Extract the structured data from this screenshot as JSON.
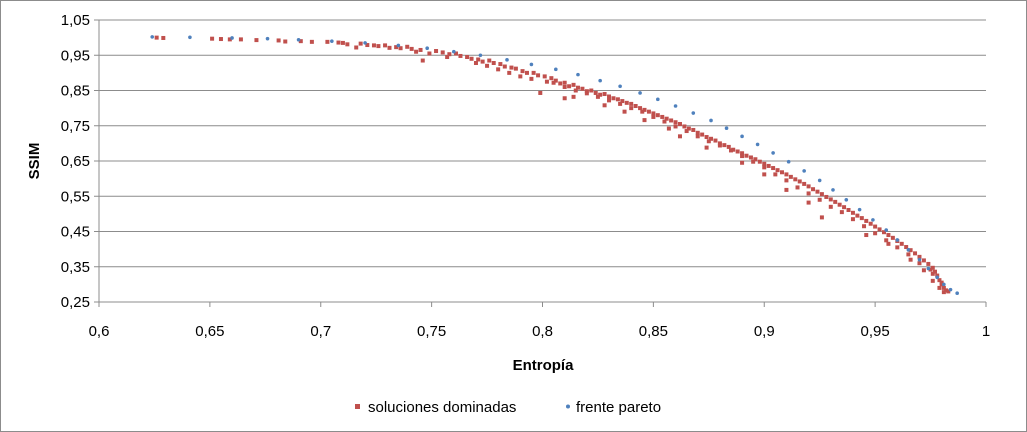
{
  "chart_data": {
    "type": "scatter",
    "xlabel": "Entropía",
    "ylabel": "SSIM",
    "xlim": [
      0.6,
      1.0
    ],
    "ylim": [
      0.25,
      1.05
    ],
    "x_ticks": [
      "0,6",
      "0,65",
      "0,7",
      "0,75",
      "0,8",
      "0,85",
      "0,9",
      "0,95",
      "1"
    ],
    "y_ticks": [
      "0,25",
      "0,35",
      "0,45",
      "0,55",
      "0,65",
      "0,75",
      "0,85",
      "0,95",
      "1,05"
    ],
    "grid": "horizontal",
    "legend_position": "bottom",
    "colors": {
      "dominated": "#c0504d",
      "pareto": "#4f81bd"
    },
    "series": [
      {
        "name": "soluciones dominadas",
        "marker": "square",
        "points": [
          [
            0.626,
            1.0
          ],
          [
            0.629,
            0.999
          ],
          [
            0.651,
            0.997
          ],
          [
            0.655,
            0.996
          ],
          [
            0.659,
            0.995
          ],
          [
            0.664,
            0.995
          ],
          [
            0.671,
            0.993
          ],
          [
            0.681,
            0.992
          ],
          [
            0.684,
            0.989
          ],
          [
            0.691,
            0.99
          ],
          [
            0.696,
            0.988
          ],
          [
            0.703,
            0.988
          ],
          [
            0.708,
            0.986
          ],
          [
            0.71,
            0.985
          ],
          [
            0.712,
            0.981
          ],
          [
            0.716,
            0.972
          ],
          [
            0.718,
            0.983
          ],
          [
            0.721,
            0.979
          ],
          [
            0.724,
            0.978
          ],
          [
            0.726,
            0.976
          ],
          [
            0.729,
            0.978
          ],
          [
            0.731,
            0.971
          ],
          [
            0.734,
            0.973
          ],
          [
            0.736,
            0.97
          ],
          [
            0.739,
            0.974
          ],
          [
            0.741,
            0.968
          ],
          [
            0.743,
            0.96
          ],
          [
            0.745,
            0.965
          ],
          [
            0.746,
            0.935
          ],
          [
            0.749,
            0.955
          ],
          [
            0.752,
            0.962
          ],
          [
            0.755,
            0.958
          ],
          [
            0.757,
            0.945
          ],
          [
            0.758,
            0.953
          ],
          [
            0.761,
            0.955
          ],
          [
            0.763,
            0.948
          ],
          [
            0.766,
            0.945
          ],
          [
            0.768,
            0.94
          ],
          [
            0.771,
            0.938
          ],
          [
            0.773,
            0.932
          ],
          [
            0.776,
            0.935
          ],
          [
            0.778,
            0.928
          ],
          [
            0.781,
            0.925
          ],
          [
            0.783,
            0.918
          ],
          [
            0.786,
            0.915
          ],
          [
            0.788,
            0.912
          ],
          [
            0.791,
            0.905
          ],
          [
            0.793,
            0.9
          ],
          [
            0.796,
            0.9
          ],
          [
            0.798,
            0.893
          ],
          [
            0.801,
            0.89
          ],
          [
            0.802,
            0.875
          ],
          [
            0.804,
            0.885
          ],
          [
            0.806,
            0.878
          ],
          [
            0.808,
            0.87
          ],
          [
            0.81,
            0.872
          ],
          [
            0.812,
            0.862
          ],
          [
            0.814,
            0.866
          ],
          [
            0.816,
            0.858
          ],
          [
            0.818,
            0.855
          ],
          [
            0.82,
            0.848
          ],
          [
            0.822,
            0.85
          ],
          [
            0.824,
            0.843
          ],
          [
            0.826,
            0.838
          ],
          [
            0.828,
            0.84
          ],
          [
            0.83,
            0.833
          ],
          [
            0.832,
            0.828
          ],
          [
            0.834,
            0.825
          ],
          [
            0.836,
            0.82
          ],
          [
            0.838,
            0.815
          ],
          [
            0.84,
            0.812
          ],
          [
            0.842,
            0.806
          ],
          [
            0.844,
            0.8
          ],
          [
            0.846,
            0.795
          ],
          [
            0.848,
            0.79
          ],
          [
            0.85,
            0.785
          ],
          [
            0.852,
            0.78
          ],
          [
            0.854,
            0.775
          ],
          [
            0.856,
            0.77
          ],
          [
            0.858,
            0.765
          ],
          [
            0.86,
            0.76
          ],
          [
            0.862,
            0.755
          ],
          [
            0.864,
            0.748
          ],
          [
            0.866,
            0.742
          ],
          [
            0.868,
            0.738
          ],
          [
            0.87,
            0.73
          ],
          [
            0.872,
            0.725
          ],
          [
            0.874,
            0.718
          ],
          [
            0.876,
            0.713
          ],
          [
            0.878,
            0.708
          ],
          [
            0.88,
            0.7
          ],
          [
            0.882,
            0.695
          ],
          [
            0.884,
            0.69
          ],
          [
            0.886,
            0.682
          ],
          [
            0.888,
            0.677
          ],
          [
            0.89,
            0.672
          ],
          [
            0.892,
            0.665
          ],
          [
            0.894,
            0.66
          ],
          [
            0.896,
            0.655
          ],
          [
            0.898,
            0.648
          ],
          [
            0.9,
            0.642
          ],
          [
            0.902,
            0.636
          ],
          [
            0.904,
            0.63
          ],
          [
            0.906,
            0.624
          ],
          [
            0.908,
            0.618
          ],
          [
            0.91,
            0.612
          ],
          [
            0.912,
            0.605
          ],
          [
            0.914,
            0.598
          ],
          [
            0.916,
            0.592
          ],
          [
            0.918,
            0.585
          ],
          [
            0.92,
            0.578
          ],
          [
            0.922,
            0.57
          ],
          [
            0.924,
            0.563
          ],
          [
            0.926,
            0.556
          ],
          [
            0.928,
            0.548
          ],
          [
            0.93,
            0.541
          ],
          [
            0.932,
            0.534
          ],
          [
            0.934,
            0.526
          ],
          [
            0.936,
            0.519
          ],
          [
            0.938,
            0.511
          ],
          [
            0.94,
            0.503
          ],
          [
            0.942,
            0.495
          ],
          [
            0.944,
            0.488
          ],
          [
            0.946,
            0.48
          ],
          [
            0.948,
            0.472
          ],
          [
            0.95,
            0.464
          ],
          [
            0.952,
            0.456
          ],
          [
            0.954,
            0.448
          ],
          [
            0.956,
            0.44
          ],
          [
            0.958,
            0.432
          ],
          [
            0.96,
            0.423
          ],
          [
            0.962,
            0.415
          ],
          [
            0.964,
            0.406
          ],
          [
            0.966,
            0.397
          ],
          [
            0.968,
            0.388
          ],
          [
            0.97,
            0.378
          ],
          [
            0.972,
            0.368
          ],
          [
            0.974,
            0.358
          ],
          [
            0.976,
            0.347
          ],
          [
            0.977,
            0.336
          ],
          [
            0.978,
            0.325
          ],
          [
            0.979,
            0.312
          ],
          [
            0.98,
            0.3
          ],
          [
            0.981,
            0.29
          ],
          [
            0.982,
            0.283
          ],
          [
            0.98,
            0.305
          ],
          [
            0.976,
            0.33
          ],
          [
            0.975,
            0.342
          ],
          [
            0.97,
            0.36
          ],
          [
            0.965,
            0.385
          ],
          [
            0.96,
            0.405
          ],
          [
            0.955,
            0.425
          ],
          [
            0.95,
            0.445
          ],
          [
            0.945,
            0.465
          ],
          [
            0.94,
            0.485
          ],
          [
            0.935,
            0.505
          ],
          [
            0.93,
            0.52
          ],
          [
            0.925,
            0.54
          ],
          [
            0.92,
            0.558
          ],
          [
            0.915,
            0.575
          ],
          [
            0.91,
            0.595
          ],
          [
            0.905,
            0.612
          ],
          [
            0.9,
            0.632
          ],
          [
            0.895,
            0.648
          ],
          [
            0.89,
            0.664
          ],
          [
            0.885,
            0.68
          ],
          [
            0.88,
            0.694
          ],
          [
            0.875,
            0.706
          ],
          [
            0.87,
            0.72
          ],
          [
            0.865,
            0.735
          ],
          [
            0.86,
            0.748
          ],
          [
            0.855,
            0.762
          ],
          [
            0.85,
            0.775
          ],
          [
            0.845,
            0.79
          ],
          [
            0.84,
            0.8
          ],
          [
            0.835,
            0.812
          ],
          [
            0.83,
            0.822
          ],
          [
            0.825,
            0.832
          ],
          [
            0.82,
            0.842
          ],
          [
            0.815,
            0.85
          ],
          [
            0.81,
            0.86
          ],
          [
            0.805,
            0.872
          ],
          [
            0.799,
            0.843
          ],
          [
            0.795,
            0.883
          ],
          [
            0.79,
            0.89
          ],
          [
            0.785,
            0.9
          ],
          [
            0.78,
            0.91
          ],
          [
            0.775,
            0.92
          ],
          [
            0.77,
            0.928
          ],
          [
            0.926,
            0.49
          ],
          [
            0.92,
            0.532
          ],
          [
            0.91,
            0.568
          ],
          [
            0.9,
            0.612
          ],
          [
            0.89,
            0.645
          ],
          [
            0.874,
            0.688
          ],
          [
            0.862,
            0.72
          ],
          [
            0.857,
            0.742
          ],
          [
            0.846,
            0.766
          ],
          [
            0.837,
            0.79
          ],
          [
            0.828,
            0.808
          ],
          [
            0.814,
            0.832
          ],
          [
            0.81,
            0.828
          ],
          [
            0.946,
            0.44
          ],
          [
            0.956,
            0.415
          ],
          [
            0.966,
            0.37
          ],
          [
            0.972,
            0.34
          ],
          [
            0.976,
            0.31
          ],
          [
            0.979,
            0.29
          ],
          [
            0.981,
            0.278
          ],
          [
            0.983,
            0.28
          ]
        ]
      },
      {
        "name": "frente pareto",
        "marker": "dot",
        "points": [
          [
            0.624,
            1.002
          ],
          [
            0.641,
            1.001
          ],
          [
            0.66,
            0.999
          ],
          [
            0.676,
            0.997
          ],
          [
            0.69,
            0.994
          ],
          [
            0.705,
            0.99
          ],
          [
            0.72,
            0.985
          ],
          [
            0.735,
            0.978
          ],
          [
            0.748,
            0.97
          ],
          [
            0.76,
            0.96
          ],
          [
            0.772,
            0.95
          ],
          [
            0.784,
            0.937
          ],
          [
            0.795,
            0.924
          ],
          [
            0.806,
            0.91
          ],
          [
            0.816,
            0.895
          ],
          [
            0.826,
            0.878
          ],
          [
            0.835,
            0.862
          ],
          [
            0.844,
            0.843
          ],
          [
            0.852,
            0.825
          ],
          [
            0.86,
            0.806
          ],
          [
            0.868,
            0.786
          ],
          [
            0.876,
            0.765
          ],
          [
            0.883,
            0.743
          ],
          [
            0.89,
            0.72
          ],
          [
            0.897,
            0.697
          ],
          [
            0.904,
            0.673
          ],
          [
            0.911,
            0.648
          ],
          [
            0.918,
            0.622
          ],
          [
            0.925,
            0.595
          ],
          [
            0.931,
            0.568
          ],
          [
            0.937,
            0.54
          ],
          [
            0.943,
            0.512
          ],
          [
            0.949,
            0.483
          ],
          [
            0.955,
            0.454
          ],
          [
            0.96,
            0.426
          ],
          [
            0.965,
            0.398
          ],
          [
            0.97,
            0.37
          ],
          [
            0.974,
            0.345
          ],
          [
            0.978,
            0.32
          ],
          [
            0.981,
            0.3
          ],
          [
            0.984,
            0.285
          ],
          [
            0.987,
            0.275
          ]
        ]
      }
    ]
  }
}
